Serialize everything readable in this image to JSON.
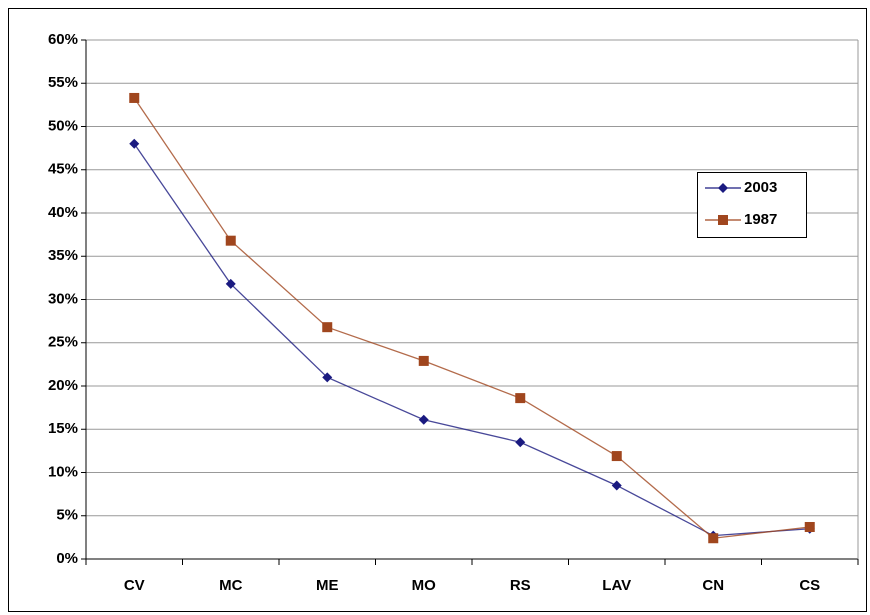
{
  "chart_data": {
    "type": "line",
    "categories": [
      "CV",
      "MC",
      "ME",
      "MO",
      "RS",
      "LAV",
      "CN",
      "CS"
    ],
    "series": [
      {
        "name": "2003",
        "color": "#1a1a80",
        "marker": "diamond",
        "values": [
          48,
          31.8,
          21,
          16.1,
          13.5,
          8.5,
          2.7,
          3.5
        ]
      },
      {
        "name": "1987",
        "color": "#a0461e",
        "marker": "square",
        "values": [
          53.3,
          36.8,
          26.8,
          22.9,
          18.6,
          11.9,
          2.4,
          3.7
        ]
      }
    ],
    "ylim": [
      0,
      60
    ],
    "yticks": [
      {
        "value": 0,
        "label": "0%"
      },
      {
        "value": 5,
        "label": "5%"
      },
      {
        "value": 10,
        "label": "10%"
      },
      {
        "value": 15,
        "label": "15%"
      },
      {
        "value": 20,
        "label": "20%"
      },
      {
        "value": 25,
        "label": "25%"
      },
      {
        "value": 30,
        "label": "30%"
      },
      {
        "value": 35,
        "label": "35%"
      },
      {
        "value": 40,
        "label": "40%"
      },
      {
        "value": 45,
        "label": "45%"
      },
      {
        "value": 50,
        "label": "50%"
      },
      {
        "value": 55,
        "label": "55%"
      },
      {
        "value": 60,
        "label": "60%"
      }
    ],
    "grid": true,
    "legend": "right"
  }
}
